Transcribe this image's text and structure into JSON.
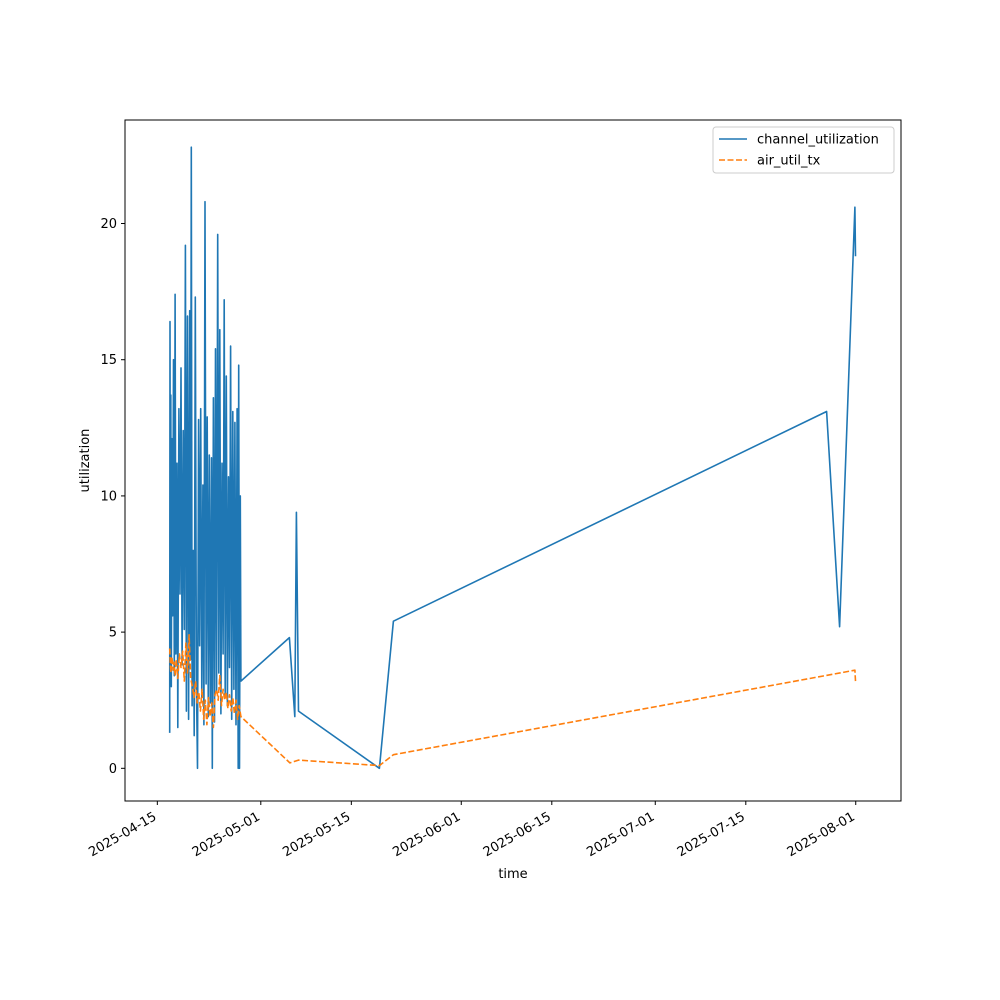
{
  "chart_data": {
    "type": "line",
    "title": "",
    "xlabel": "time",
    "ylabel": "utilization",
    "x_type": "date",
    "xlim": [
      "2025-04-10",
      "2025-08-08"
    ],
    "ylim": [
      -1.2,
      23.8
    ],
    "x_ticks": [
      "2025-04-15",
      "2025-05-01",
      "2025-05-15",
      "2025-06-01",
      "2025-06-15",
      "2025-07-01",
      "2025-07-15",
      "2025-08-01"
    ],
    "y_ticks": [
      0,
      5,
      10,
      15,
      20
    ],
    "grid": false,
    "legend": "top-right",
    "series": [
      {
        "name": "channel_utilization",
        "color": "#1f77b4",
        "style": "solid",
        "points": [
          [
            "2025-04-16 22:00",
            1.3
          ],
          [
            "2025-04-16 23:00",
            16.4
          ],
          [
            "2025-04-17 00:00",
            6.2
          ],
          [
            "2025-04-17 02:00",
            13.7
          ],
          [
            "2025-04-17 04:00",
            3.0
          ],
          [
            "2025-04-17 06:00",
            12.1
          ],
          [
            "2025-04-17 09:00",
            5.6
          ],
          [
            "2025-04-17 12:00",
            15.0
          ],
          [
            "2025-04-17 15:00",
            3.4
          ],
          [
            "2025-04-17 18:00",
            17.4
          ],
          [
            "2025-04-17 21:00",
            4.2
          ],
          [
            "2025-04-18 01:00",
            11.2
          ],
          [
            "2025-04-18 04:00",
            1.5
          ],
          [
            "2025-04-18 08:00",
            13.2
          ],
          [
            "2025-04-18 12:00",
            6.4
          ],
          [
            "2025-04-18 16:00",
            14.7
          ],
          [
            "2025-04-18 20:00",
            3.8
          ],
          [
            "2025-04-19 00:00",
            12.4
          ],
          [
            "2025-04-19 04:00",
            5.1
          ],
          [
            "2025-04-19 08:00",
            19.2
          ],
          [
            "2025-04-19 12:00",
            2.1
          ],
          [
            "2025-04-19 16:00",
            16.6
          ],
          [
            "2025-04-19 20:00",
            1.8
          ],
          [
            "2025-04-20 00:00",
            16.8
          ],
          [
            "2025-04-20 03:00",
            4.0
          ],
          [
            "2025-04-20 06:00",
            22.8
          ],
          [
            "2025-04-20 09:00",
            2.3
          ],
          [
            "2025-04-20 13:00",
            8.0
          ],
          [
            "2025-04-20 17:00",
            1.2
          ],
          [
            "2025-04-20 21:00",
            17.3
          ],
          [
            "2025-04-21 01:00",
            3.2
          ],
          [
            "2025-04-21 05:00",
            0.0
          ],
          [
            "2025-04-21 09:00",
            12.8
          ],
          [
            "2025-04-21 13:00",
            4.5
          ],
          [
            "2025-04-21 17:00",
            13.2
          ],
          [
            "2025-04-21 21:00",
            2.6
          ],
          [
            "2025-04-22 01:00",
            10.4
          ],
          [
            "2025-04-22 05:00",
            1.6
          ],
          [
            "2025-04-22 09:00",
            20.8
          ],
          [
            "2025-04-22 13:00",
            3.1
          ],
          [
            "2025-04-22 17:00",
            12.9
          ],
          [
            "2025-04-22 21:00",
            1.9
          ],
          [
            "2025-04-23 01:00",
            11.5
          ],
          [
            "2025-04-23 05:00",
            2.4
          ],
          [
            "2025-04-23 09:00",
            11.4
          ],
          [
            "2025-04-23 12:00",
            0.0
          ],
          [
            "2025-04-23 16:00",
            13.6
          ],
          [
            "2025-04-23 20:00",
            1.7
          ],
          [
            "2025-04-24 00:00",
            15.4
          ],
          [
            "2025-04-24 04:00",
            2.8
          ],
          [
            "2025-04-24 08:00",
            19.6
          ],
          [
            "2025-04-24 12:00",
            3.5
          ],
          [
            "2025-04-24 16:00",
            16.1
          ],
          [
            "2025-04-24 20:00",
            2.0
          ],
          [
            "2025-04-25 00:00",
            11.2
          ],
          [
            "2025-04-25 04:00",
            4.2
          ],
          [
            "2025-04-25 08:00",
            17.2
          ],
          [
            "2025-04-25 12:00",
            2.6
          ],
          [
            "2025-04-25 16:00",
            14.4
          ],
          [
            "2025-04-25 20:00",
            2.3
          ],
          [
            "2025-04-26 00:00",
            10.7
          ],
          [
            "2025-04-26 04:00",
            3.7
          ],
          [
            "2025-04-26 08:00",
            15.5
          ],
          [
            "2025-04-26 12:00",
            1.8
          ],
          [
            "2025-04-26 16:00",
            13.1
          ],
          [
            "2025-04-26 20:00",
            2.9
          ],
          [
            "2025-04-27 00:00",
            12.7
          ],
          [
            "2025-04-27 04:00",
            1.6
          ],
          [
            "2025-04-27 08:00",
            13.2
          ],
          [
            "2025-04-27 12:00",
            0.0
          ],
          [
            "2025-04-27 14:00",
            14.8
          ],
          [
            "2025-04-27 17:00",
            0.0
          ],
          [
            "2025-04-27 20:00",
            10.0
          ],
          [
            "2025-04-27 22:00",
            3.2
          ],
          [
            "2025-05-05 10:00",
            4.8
          ],
          [
            "2025-05-06 06:00",
            1.9
          ],
          [
            "2025-05-06 12:00",
            9.4
          ],
          [
            "2025-05-06 20:00",
            2.1
          ],
          [
            "2025-05-19 08:00",
            0.0
          ],
          [
            "2025-05-21 12:00",
            5.4
          ],
          [
            "2025-07-27 12:00",
            13.1
          ],
          [
            "2025-07-29 12:00",
            5.2
          ],
          [
            "2025-07-31 21:00",
            20.6
          ],
          [
            "2025-07-31 23:00",
            18.8
          ]
        ]
      },
      {
        "name": "air_util_tx",
        "color": "#ff7f0e",
        "style": "dashed",
        "points": [
          [
            "2025-04-16 22:00",
            4.4
          ],
          [
            "2025-04-17 02:00",
            3.5
          ],
          [
            "2025-04-17 06:00",
            4.1
          ],
          [
            "2025-04-17 10:00",
            3.6
          ],
          [
            "2025-04-17 14:00",
            3.9
          ],
          [
            "2025-04-17 18:00",
            3.4
          ],
          [
            "2025-04-17 22:00",
            4.0
          ],
          [
            "2025-04-18 04:00",
            3.3
          ],
          [
            "2025-04-18 10:00",
            4.2
          ],
          [
            "2025-04-18 16:00",
            3.7
          ],
          [
            "2025-04-18 22:00",
            4.3
          ],
          [
            "2025-04-19 04:00",
            3.2
          ],
          [
            "2025-04-19 10:00",
            4.6
          ],
          [
            "2025-04-19 16:00",
            3.5
          ],
          [
            "2025-04-19 22:00",
            4.9
          ],
          [
            "2025-04-20 04:00",
            3.3
          ],
          [
            "2025-04-20 10:00",
            3.0
          ],
          [
            "2025-04-20 16:00",
            2.6
          ],
          [
            "2025-04-20 22:00",
            3.2
          ],
          [
            "2025-04-21 04:00",
            2.4
          ],
          [
            "2025-04-21 10:00",
            2.8
          ],
          [
            "2025-04-21 16:00",
            2.1
          ],
          [
            "2025-04-21 22:00",
            2.9
          ],
          [
            "2025-04-22 04:00",
            1.8
          ],
          [
            "2025-04-22 10:00",
            2.5
          ],
          [
            "2025-04-22 16:00",
            1.6
          ],
          [
            "2025-04-22 22:00",
            2.6
          ],
          [
            "2025-04-23 04:00",
            1.9
          ],
          [
            "2025-04-23 10:00",
            2.4
          ],
          [
            "2025-04-23 16:00",
            1.5
          ],
          [
            "2025-04-23 22:00",
            2.7
          ],
          [
            "2025-04-24 04:00",
            2.9
          ],
          [
            "2025-04-24 10:00",
            2.5
          ],
          [
            "2025-04-24 16:00",
            3.4
          ],
          [
            "2025-04-24 22:00",
            2.3
          ],
          [
            "2025-04-25 04:00",
            2.9
          ],
          [
            "2025-04-25 10:00",
            2.5
          ],
          [
            "2025-04-25 16:00",
            2.8
          ],
          [
            "2025-04-25 22:00",
            2.2
          ],
          [
            "2025-04-26 04:00",
            2.7
          ],
          [
            "2025-04-26 10:00",
            2.1
          ],
          [
            "2025-04-26 16:00",
            2.6
          ],
          [
            "2025-04-26 22:00",
            2.0
          ],
          [
            "2025-04-27 04:00",
            2.5
          ],
          [
            "2025-04-27 10:00",
            1.8
          ],
          [
            "2025-04-27 16:00",
            2.3
          ],
          [
            "2025-04-27 22:00",
            1.9
          ],
          [
            "2025-05-05 12:00",
            0.2
          ],
          [
            "2025-05-06 20:00",
            0.3
          ],
          [
            "2025-05-19 08:00",
            0.1
          ],
          [
            "2025-05-21 12:00",
            0.5
          ],
          [
            "2025-07-31 21:00",
            3.6
          ],
          [
            "2025-07-31 23:00",
            3.2
          ]
        ]
      }
    ]
  }
}
